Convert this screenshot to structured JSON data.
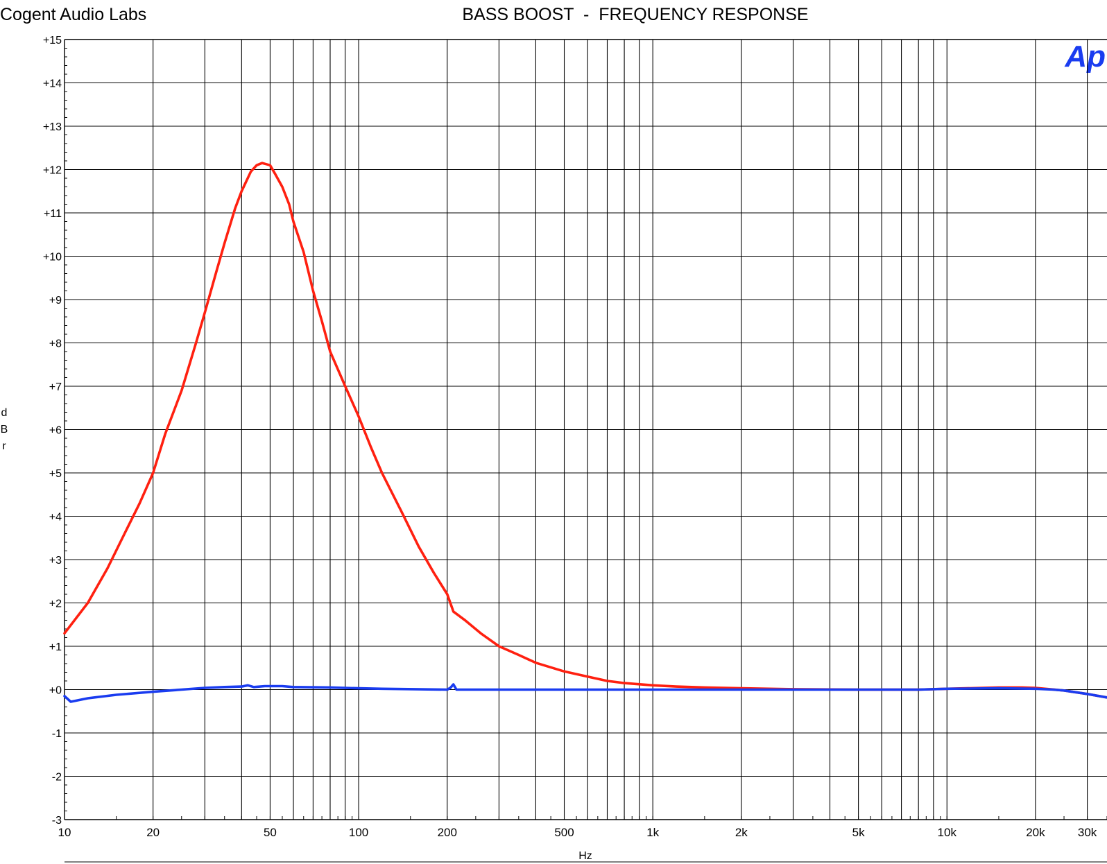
{
  "header": {
    "company": "Cogent Audio Labs",
    "title": "BASS BOOST  -  FREQUENCY RESPONSE",
    "logo_text": "Ap"
  },
  "chart_data": {
    "type": "line",
    "title": "BASS BOOST  -  FREQUENCY RESPONSE",
    "xlabel": "Hz",
    "ylabel": "dBr",
    "x_scale": "log",
    "xlim": [
      10,
      35000
    ],
    "ylim": [
      -3,
      15
    ],
    "grid": true,
    "x_ticks": [
      {
        "value": 10,
        "label": "10"
      },
      {
        "value": 20,
        "label": "20"
      },
      {
        "value": 50,
        "label": "50"
      },
      {
        "value": 100,
        "label": "100"
      },
      {
        "value": 200,
        "label": "200"
      },
      {
        "value": 500,
        "label": "500"
      },
      {
        "value": 1000,
        "label": "1k"
      },
      {
        "value": 2000,
        "label": "2k"
      },
      {
        "value": 5000,
        "label": "5k"
      },
      {
        "value": 10000,
        "label": "10k"
      },
      {
        "value": 20000,
        "label": "20k"
      },
      {
        "value": 30000,
        "label": "30k"
      }
    ],
    "y_ticks": [
      {
        "value": 15,
        "label": "+15"
      },
      {
        "value": 14,
        "label": "+14"
      },
      {
        "value": 13,
        "label": "+13"
      },
      {
        "value": 12,
        "label": "+12"
      },
      {
        "value": 11,
        "label": "+11"
      },
      {
        "value": 10,
        "label": "+10"
      },
      {
        "value": 9,
        "label": "+9"
      },
      {
        "value": 8,
        "label": "+8"
      },
      {
        "value": 7,
        "label": "+7"
      },
      {
        "value": 6,
        "label": "+6"
      },
      {
        "value": 5,
        "label": "+5"
      },
      {
        "value": 4,
        "label": "+4"
      },
      {
        "value": 3,
        "label": "+3"
      },
      {
        "value": 2,
        "label": "+2"
      },
      {
        "value": 1,
        "label": "+1"
      },
      {
        "value": 0,
        "label": "+0"
      },
      {
        "value": -1,
        "label": "-1"
      },
      {
        "value": -2,
        "label": "-2"
      },
      {
        "value": -3,
        "label": "-3"
      }
    ],
    "series": [
      {
        "color": "#ff2010",
        "points": [
          [
            10,
            1.3
          ],
          [
            12,
            2.0
          ],
          [
            14,
            2.8
          ],
          [
            16,
            3.6
          ],
          [
            18,
            4.3
          ],
          [
            20,
            5.0
          ],
          [
            22,
            5.9
          ],
          [
            25,
            6.9
          ],
          [
            28,
            8.0
          ],
          [
            30,
            8.7
          ],
          [
            33,
            9.7
          ],
          [
            35,
            10.3
          ],
          [
            38,
            11.1
          ],
          [
            40,
            11.5
          ],
          [
            43,
            11.95
          ],
          [
            45,
            12.1
          ],
          [
            47,
            12.15
          ],
          [
            50,
            12.1
          ],
          [
            52,
            11.9
          ],
          [
            55,
            11.6
          ],
          [
            58,
            11.2
          ],
          [
            60,
            10.8
          ],
          [
            65,
            10.1
          ],
          [
            70,
            9.2
          ],
          [
            75,
            8.5
          ],
          [
            80,
            7.8
          ],
          [
            90,
            7.0
          ],
          [
            100,
            6.3
          ],
          [
            110,
            5.6
          ],
          [
            120,
            5.0
          ],
          [
            140,
            4.1
          ],
          [
            160,
            3.3
          ],
          [
            180,
            2.7
          ],
          [
            200,
            2.2
          ],
          [
            210,
            1.8
          ],
          [
            230,
            1.6
          ],
          [
            260,
            1.3
          ],
          [
            300,
            1.0
          ],
          [
            350,
            0.8
          ],
          [
            400,
            0.62
          ],
          [
            500,
            0.42
          ],
          [
            600,
            0.3
          ],
          [
            700,
            0.2
          ],
          [
            800,
            0.15
          ],
          [
            1000,
            0.1
          ],
          [
            1200,
            0.07
          ],
          [
            1500,
            0.05
          ],
          [
            2000,
            0.03
          ],
          [
            3000,
            0.01
          ],
          [
            5000,
            0.0
          ],
          [
            8000,
            0.0
          ],
          [
            10000,
            0.02
          ],
          [
            15000,
            0.05
          ],
          [
            18000,
            0.05
          ],
          [
            20000,
            0.04
          ],
          [
            25000,
            -0.02
          ],
          [
            30000,
            -0.1
          ],
          [
            35000,
            -0.18
          ]
        ]
      },
      {
        "color": "#1a3cf0",
        "points": [
          [
            10,
            -0.15
          ],
          [
            10.5,
            -0.28
          ],
          [
            12,
            -0.2
          ],
          [
            15,
            -0.12
          ],
          [
            20,
            -0.05
          ],
          [
            25,
            0.0
          ],
          [
            30,
            0.04
          ],
          [
            35,
            0.06
          ],
          [
            40,
            0.07
          ],
          [
            42,
            0.1
          ],
          [
            44,
            0.06
          ],
          [
            48,
            0.08
          ],
          [
            55,
            0.08
          ],
          [
            60,
            0.06
          ],
          [
            80,
            0.05
          ],
          [
            100,
            0.03
          ],
          [
            120,
            0.02
          ],
          [
            200,
            0.0
          ],
          [
            205,
            0.04
          ],
          [
            210,
            0.12
          ],
          [
            215,
            0.0
          ],
          [
            300,
            0.0
          ],
          [
            1000,
            0.0
          ],
          [
            5000,
            0.0
          ],
          [
            8000,
            0.0
          ],
          [
            10000,
            0.02
          ],
          [
            15000,
            0.03
          ],
          [
            20000,
            0.02
          ],
          [
            23000,
            0.0
          ],
          [
            25000,
            -0.02
          ],
          [
            30000,
            -0.1
          ],
          [
            35000,
            -0.18
          ]
        ]
      }
    ]
  }
}
